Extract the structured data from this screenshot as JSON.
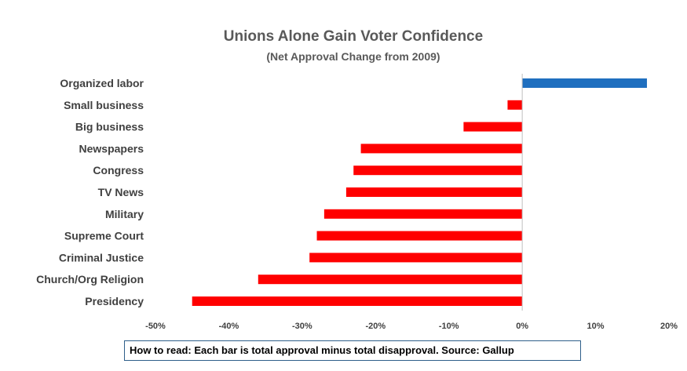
{
  "chart_data": {
    "type": "bar",
    "orientation": "horizontal",
    "title": "Unions Alone Gain Voter Confidence",
    "subtitle": "(Net Approval Change from 2009)",
    "categories": [
      "Organized labor",
      "Small business",
      "Big business",
      "Newspapers",
      "Congress",
      "TV News",
      "Military",
      "Supreme Court",
      "Criminal Justice",
      "Church/Org Religion",
      "Presidency"
    ],
    "values": [
      17,
      -2,
      -8,
      -22,
      -23,
      -24,
      -27,
      -28,
      -29,
      -36,
      -45
    ],
    "xlim": [
      -50,
      20
    ],
    "ticks": [
      "-50%",
      "-40%",
      "-30%",
      "-20%",
      "-10%",
      "0%",
      "10%",
      "20%"
    ],
    "tick_values": [
      -50,
      -40,
      -30,
      -20,
      -10,
      0,
      10,
      20
    ],
    "colors": {
      "positive": "#1f6fbf",
      "negative": "#ff0000"
    },
    "grid": false,
    "legend": "none"
  },
  "note": "How to read: Each bar is total approval minus total disapproval. Source: Gallup"
}
